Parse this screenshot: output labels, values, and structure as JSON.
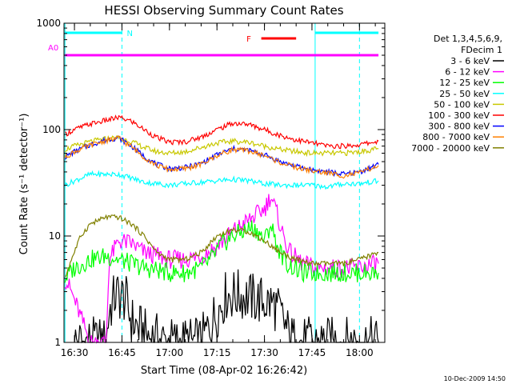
{
  "chart_data": {
    "type": "line",
    "title": "HESSI Observing Summary Count Rates",
    "xlabel": "Start Time (08-Apr-02 16:26:42)",
    "ylabel": "Count Rate (s⁻¹ detector⁻¹)",
    "yscale": "log",
    "ylim": [
      1,
      1000
    ],
    "xlim_minutes_of_day": [
      986.7,
      1088
    ],
    "x_ticks": [
      {
        "label": "16:30",
        "t": 990
      },
      {
        "label": "16:45",
        "t": 1005
      },
      {
        "label": "17:00",
        "t": 1020
      },
      {
        "label": "17:15",
        "t": 1035
      },
      {
        "label": "17:30",
        "t": 1050
      },
      {
        "label": "17:45",
        "t": 1065
      },
      {
        "label": "18:00",
        "t": 1080
      }
    ],
    "y_ticks": [
      {
        "label": "1",
        "v": 1
      },
      {
        "label": "10",
        "v": 10
      },
      {
        "label": "100",
        "v": 100
      },
      {
        "label": "1000",
        "v": 1000
      }
    ],
    "legend_title": [
      "Det 1,3,4,5,6,9,",
      "FDecim 1"
    ],
    "legend_position": "right",
    "series": [
      {
        "name": "3 - 6 keV",
        "color": "#000000",
        "points": [
          [
            990,
            1
          ],
          [
            995,
            1
          ],
          [
            1000,
            1
          ],
          [
            1001,
            2
          ],
          [
            1003,
            2.8
          ],
          [
            1006,
            2.6
          ],
          [
            1008,
            1.6
          ],
          [
            1012,
            1.2
          ],
          [
            1015,
            1.1
          ],
          [
            1020,
            1
          ],
          [
            1030,
            1
          ],
          [
            1033,
            1.5
          ],
          [
            1038,
            2.8
          ],
          [
            1042,
            2.8
          ],
          [
            1046,
            2.6
          ],
          [
            1050,
            2.4
          ],
          [
            1053,
            2.3
          ],
          [
            1056,
            1.6
          ],
          [
            1058,
            1.1
          ],
          [
            1060,
            1
          ],
          [
            1086,
            1
          ]
        ]
      },
      {
        "name": "6 - 12 keV",
        "color": "#ff00ff",
        "points": [
          [
            987,
            4
          ],
          [
            989,
            3
          ],
          [
            995,
            1
          ],
          [
            1000,
            1
          ],
          [
            1001,
            6
          ],
          [
            1004,
            9
          ],
          [
            1008,
            8.5
          ],
          [
            1012,
            7
          ],
          [
            1016,
            6.5
          ],
          [
            1020,
            6
          ],
          [
            1025,
            6
          ],
          [
            1030,
            6.5
          ],
          [
            1035,
            8
          ],
          [
            1040,
            11
          ],
          [
            1045,
            14
          ],
          [
            1050,
            18
          ],
          [
            1052,
            24
          ],
          [
            1054,
            16
          ],
          [
            1056,
            10
          ],
          [
            1058,
            7
          ],
          [
            1062,
            5.5
          ],
          [
            1066,
            5
          ],
          [
            1072,
            5
          ],
          [
            1078,
            5
          ],
          [
            1086,
            5.5
          ]
        ]
      },
      {
        "name": "12 - 25 keV",
        "color": "#00ff00",
        "points": [
          [
            987,
            4
          ],
          [
            990,
            5
          ],
          [
            995,
            6
          ],
          [
            1000,
            6.5
          ],
          [
            1004,
            6
          ],
          [
            1008,
            5.5
          ],
          [
            1012,
            5
          ],
          [
            1016,
            4.8
          ],
          [
            1020,
            4.5
          ],
          [
            1025,
            4.5
          ],
          [
            1030,
            5
          ],
          [
            1033,
            6
          ],
          [
            1036,
            8
          ],
          [
            1040,
            10
          ],
          [
            1043,
            11
          ],
          [
            1046,
            12
          ],
          [
            1048,
            11
          ],
          [
            1050,
            9
          ],
          [
            1052,
            13
          ],
          [
            1054,
            8
          ],
          [
            1057,
            5.5
          ],
          [
            1062,
            4.5
          ],
          [
            1068,
            4.5
          ],
          [
            1074,
            4.5
          ],
          [
            1080,
            4.5
          ],
          [
            1086,
            4.5
          ]
        ]
      },
      {
        "name": "25 - 50 keV",
        "color": "#00ffff",
        "points": [
          [
            987,
            30
          ],
          [
            990,
            33
          ],
          [
            995,
            38
          ],
          [
            1000,
            38
          ],
          [
            1004,
            38
          ],
          [
            1008,
            35
          ],
          [
            1012,
            32
          ],
          [
            1016,
            31
          ],
          [
            1020,
            30
          ],
          [
            1025,
            31
          ],
          [
            1030,
            32
          ],
          [
            1035,
            33
          ],
          [
            1040,
            34
          ],
          [
            1045,
            33
          ],
          [
            1050,
            31
          ],
          [
            1055,
            30
          ],
          [
            1060,
            30
          ],
          [
            1065,
            30
          ],
          [
            1070,
            29
          ],
          [
            1075,
            31
          ],
          [
            1080,
            31
          ],
          [
            1086,
            33
          ]
        ]
      },
      {
        "name": "50 - 100 keV",
        "color": "#c8c800",
        "points": [
          [
            987,
            65
          ],
          [
            990,
            70
          ],
          [
            995,
            77
          ],
          [
            1000,
            82
          ],
          [
            1004,
            84
          ],
          [
            1008,
            77
          ],
          [
            1012,
            68
          ],
          [
            1016,
            62
          ],
          [
            1020,
            60
          ],
          [
            1025,
            62
          ],
          [
            1030,
            68
          ],
          [
            1035,
            75
          ],
          [
            1040,
            78
          ],
          [
            1045,
            76
          ],
          [
            1050,
            70
          ],
          [
            1055,
            65
          ],
          [
            1060,
            62
          ],
          [
            1065,
            60
          ],
          [
            1070,
            60
          ],
          [
            1075,
            60
          ],
          [
            1080,
            62
          ],
          [
            1086,
            66
          ]
        ]
      },
      {
        "name": "100 - 300 keV",
        "color": "#ff0000",
        "points": [
          [
            987,
            90
          ],
          [
            990,
            100
          ],
          [
            995,
            113
          ],
          [
            1000,
            122
          ],
          [
            1004,
            130
          ],
          [
            1008,
            120
          ],
          [
            1012,
            100
          ],
          [
            1016,
            84
          ],
          [
            1020,
            76
          ],
          [
            1025,
            77
          ],
          [
            1030,
            85
          ],
          [
            1035,
            100
          ],
          [
            1040,
            115
          ],
          [
            1045,
            112
          ],
          [
            1050,
            100
          ],
          [
            1055,
            88
          ],
          [
            1060,
            80
          ],
          [
            1065,
            75
          ],
          [
            1070,
            70
          ],
          [
            1075,
            70
          ],
          [
            1080,
            72
          ],
          [
            1086,
            78
          ]
        ]
      },
      {
        "name": "300 - 800 keV",
        "color": "#0000ff",
        "points": [
          [
            987,
            55
          ],
          [
            990,
            62
          ],
          [
            995,
            72
          ],
          [
            1000,
            80
          ],
          [
            1004,
            84
          ],
          [
            1008,
            70
          ],
          [
            1012,
            56
          ],
          [
            1016,
            47
          ],
          [
            1020,
            43
          ],
          [
            1025,
            44
          ],
          [
            1030,
            48
          ],
          [
            1035,
            58
          ],
          [
            1040,
            66
          ],
          [
            1045,
            64
          ],
          [
            1050,
            58
          ],
          [
            1055,
            50
          ],
          [
            1060,
            45
          ],
          [
            1065,
            42
          ],
          [
            1070,
            40
          ],
          [
            1075,
            38
          ],
          [
            1080,
            40
          ],
          [
            1086,
            47
          ]
        ]
      },
      {
        "name": "800 - 7000 keV",
        "color": "#ff8000",
        "points": [
          [
            987,
            55
          ],
          [
            990,
            62
          ],
          [
            995,
            71
          ],
          [
            1000,
            79
          ],
          [
            1004,
            83
          ],
          [
            1008,
            69
          ],
          [
            1012,
            55
          ],
          [
            1016,
            46
          ],
          [
            1020,
            42
          ],
          [
            1025,
            43
          ],
          [
            1030,
            47
          ],
          [
            1035,
            57
          ],
          [
            1040,
            65
          ],
          [
            1045,
            63
          ],
          [
            1050,
            57
          ],
          [
            1055,
            49
          ],
          [
            1060,
            44
          ],
          [
            1065,
            41
          ],
          [
            1070,
            39
          ],
          [
            1075,
            37
          ],
          [
            1080,
            39
          ],
          [
            1086,
            46
          ]
        ]
      },
      {
        "name": "7000 - 20000 keV",
        "color": "#808000",
        "points": [
          [
            987,
            4
          ],
          [
            989,
            6
          ],
          [
            992,
            10
          ],
          [
            995,
            13
          ],
          [
            1000,
            15
          ],
          [
            1004,
            15
          ],
          [
            1008,
            13
          ],
          [
            1012,
            10
          ],
          [
            1016,
            7
          ],
          [
            1020,
            6
          ],
          [
            1025,
            6
          ],
          [
            1030,
            7
          ],
          [
            1035,
            10
          ],
          [
            1040,
            11.5
          ],
          [
            1045,
            11
          ],
          [
            1050,
            9
          ],
          [
            1055,
            7
          ],
          [
            1060,
            6
          ],
          [
            1065,
            5.5
          ],
          [
            1070,
            5.5
          ],
          [
            1075,
            5.5
          ],
          [
            1080,
            6
          ],
          [
            1086,
            7
          ]
        ]
      }
    ],
    "annotations": {
      "flags_top": [
        {
          "label": "N",
          "color": "#00ffff",
          "segments": [
            [
              987,
              1005
            ],
            [
              1066,
              1086
            ]
          ]
        },
        {
          "label": "F",
          "color": "#ff0000",
          "segments": [
            [
              1049,
              1060
            ]
          ]
        }
      ],
      "attenuator": {
        "label": "A0",
        "color": "#ff00ff",
        "value": 500,
        "range": [
          987,
          1086
        ]
      },
      "night_boundaries": [
        1005,
        1080
      ]
    },
    "colors": {
      "background": "#ffffff",
      "axes": "#000000",
      "title": "#000000"
    }
  },
  "footer": {
    "timestamp": "10-Dec-2009 14:50"
  }
}
